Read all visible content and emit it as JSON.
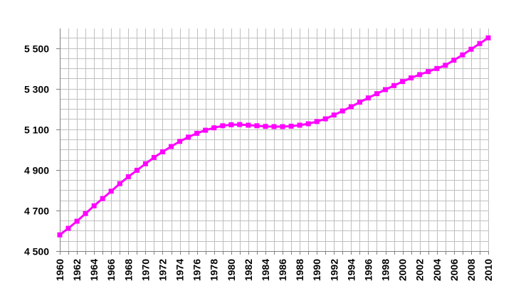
{
  "chart_data": {
    "type": "line",
    "title": "",
    "xlabel": "",
    "ylabel": "",
    "x": [
      1960,
      1961,
      1962,
      1963,
      1964,
      1965,
      1966,
      1967,
      1968,
      1969,
      1970,
      1971,
      1972,
      1973,
      1974,
      1975,
      1976,
      1977,
      1978,
      1979,
      1980,
      1981,
      1982,
      1983,
      1984,
      1985,
      1986,
      1987,
      1988,
      1989,
      1990,
      1991,
      1992,
      1993,
      1994,
      1995,
      1996,
      1997,
      1998,
      1999,
      2000,
      2001,
      2002,
      2003,
      2004,
      2005,
      2006,
      2007,
      2008,
      2009,
      2010
    ],
    "series": [
      {
        "values": [
          4580,
          4612,
          4647,
          4685,
          4723,
          4759,
          4795,
          4832,
          4866,
          4898,
          4930,
          4961,
          4989,
          5015,
          5040,
          5061,
          5080,
          5095,
          5107,
          5117,
          5122,
          5123,
          5120,
          5117,
          5114,
          5113,
          5113,
          5115,
          5120,
          5127,
          5138,
          5151,
          5170,
          5190,
          5211,
          5233,
          5254,
          5275,
          5295,
          5315,
          5335,
          5353,
          5369,
          5384,
          5399,
          5415,
          5440,
          5466,
          5494,
          5522,
          5550
        ],
        "color": "#ff00ff"
      }
    ],
    "ylim": [
      4500,
      5600
    ],
    "xlim": [
      1960,
      2010
    ],
    "yticks": [
      "4 500",
      "4 700",
      "4 900",
      "5 100",
      "5 300",
      "5 500"
    ],
    "ytick_values": [
      4500,
      4700,
      4900,
      5100,
      5300,
      5500
    ],
    "xticks": [
      "1960",
      "1962",
      "1964",
      "1966",
      "1968",
      "1970",
      "1972",
      "1974",
      "1976",
      "1978",
      "1980",
      "1982",
      "1984",
      "1986",
      "1988",
      "1990",
      "1992",
      "1994",
      "1996",
      "1998",
      "2000",
      "2002",
      "2004",
      "2006",
      "2008",
      "2010"
    ],
    "xtick_values": [
      1960,
      1962,
      1964,
      1966,
      1968,
      1970,
      1972,
      1974,
      1976,
      1978,
      1980,
      1982,
      1984,
      1986,
      1988,
      1990,
      1992,
      1994,
      1996,
      1998,
      2000,
      2002,
      2004,
      2006,
      2008,
      2010
    ],
    "grid": true,
    "legend": "none",
    "gridline_color": "#c0c0c0",
    "axis_color": "#808080"
  }
}
